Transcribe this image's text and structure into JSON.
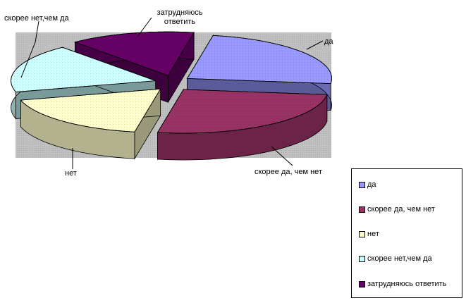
{
  "chart_data": {
    "type": "pie",
    "variant": "3d-exploded",
    "title": "",
    "categories": [
      "да",
      "скорее да, чем нет",
      "нет",
      "скорее нет,чем да",
      "затрудняюсь ответить"
    ],
    "values": [
      24,
      26,
      18,
      18,
      14
    ],
    "data_labels": [
      "да",
      "скорее да, чем нет",
      "нет",
      "скорее нет,чем да",
      "затрудняюсь ответить"
    ],
    "colors": [
      "#9999FF",
      "#993366",
      "#FFFFCC",
      "#CCFFFF",
      "#660066"
    ],
    "plot_background": "#C0C0C0",
    "legend": {
      "placement": "bottom-right",
      "entries": [
        "да",
        "скорее да, чем нет",
        "нет",
        "скорее нет,чем да",
        "затрудняюсь ответить"
      ]
    }
  }
}
